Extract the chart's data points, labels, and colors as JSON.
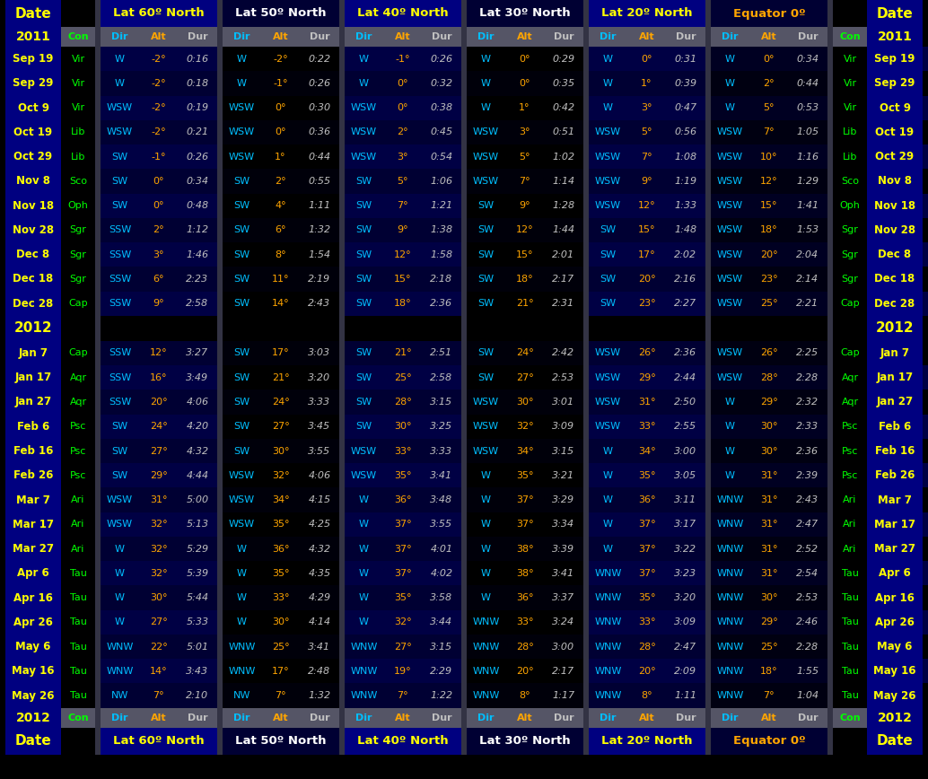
{
  "colors": {
    "date_text": "#FFFF00",
    "year_text": "#FFFF00",
    "con_text": "#00FF00",
    "dir_text": "#00BFFF",
    "alt_text": "#FFA500",
    "dur_text": "#C0C0C0",
    "subheader_dir": "#00BFFF",
    "subheader_alt": "#FFA500",
    "subheader_dur": "#C0C0C0",
    "lat60_header": "#FFFF00",
    "lat50_header": "#FFFFFF",
    "lat40_header": "#FFFF00",
    "lat30_header": "#FFFFFF",
    "lat20_header": "#FFFF00",
    "equator_header": "#FFA500"
  },
  "bg": {
    "date_col": "#000080",
    "con_col": "#000000",
    "lat60_header": "#000080",
    "lat50_header": "#000033",
    "lat40_header": "#000080",
    "lat30_header": "#000033",
    "lat20_header": "#000080",
    "eq_header": "#000033",
    "subheader": "#555566",
    "year_sep": "#000000",
    "row_dark_blue": "#000044",
    "row_black": "#000000",
    "separator_col": "#333344",
    "grid_line": "#333366"
  },
  "rows": [
    {
      "date": "Sep 19",
      "con": "Vir",
      "lat60": [
        "W",
        "-2°",
        "0:16"
      ],
      "lat50": [
        "W",
        "-2°",
        "0:22"
      ],
      "lat40": [
        "W",
        "-1°",
        "0:26"
      ],
      "lat30": [
        "W",
        "0°",
        "0:29"
      ],
      "lat20": [
        "W",
        "0°",
        "0:31"
      ],
      "eq": [
        "W",
        "0°",
        "0:34"
      ]
    },
    {
      "date": "Sep 29",
      "con": "Vir",
      "lat60": [
        "W",
        "-2°",
        "0:18"
      ],
      "lat50": [
        "W",
        "-1°",
        "0:26"
      ],
      "lat40": [
        "W",
        "0°",
        "0:32"
      ],
      "lat30": [
        "W",
        "0°",
        "0:35"
      ],
      "lat20": [
        "W",
        "1°",
        "0:39"
      ],
      "eq": [
        "W",
        "2°",
        "0:44"
      ]
    },
    {
      "date": "Oct 9",
      "con": "Vir",
      "lat60": [
        "WSW",
        "-2°",
        "0:19"
      ],
      "lat50": [
        "WSW",
        "0°",
        "0:30"
      ],
      "lat40": [
        "WSW",
        "0°",
        "0:38"
      ],
      "lat30": [
        "W",
        "1°",
        "0:42"
      ],
      "lat20": [
        "W",
        "3°",
        "0:47"
      ],
      "eq": [
        "W",
        "5°",
        "0:53"
      ]
    },
    {
      "date": "Oct 19",
      "con": "Lib",
      "lat60": [
        "WSW",
        "-2°",
        "0:21"
      ],
      "lat50": [
        "WSW",
        "0°",
        "0:36"
      ],
      "lat40": [
        "WSW",
        "2°",
        "0:45"
      ],
      "lat30": [
        "WSW",
        "3°",
        "0:51"
      ],
      "lat20": [
        "WSW",
        "5°",
        "0:56"
      ],
      "eq": [
        "WSW",
        "7°",
        "1:05"
      ]
    },
    {
      "date": "Oct 29",
      "con": "Lib",
      "lat60": [
        "SW",
        "-1°",
        "0:26"
      ],
      "lat50": [
        "WSW",
        "1°",
        "0:44"
      ],
      "lat40": [
        "WSW",
        "3°",
        "0:54"
      ],
      "lat30": [
        "WSW",
        "5°",
        "1:02"
      ],
      "lat20": [
        "WSW",
        "7°",
        "1:08"
      ],
      "eq": [
        "WSW",
        "10°",
        "1:16"
      ]
    },
    {
      "date": "Nov 8",
      "con": "Sco",
      "lat60": [
        "SW",
        "0°",
        "0:34"
      ],
      "lat50": [
        "SW",
        "2°",
        "0:55"
      ],
      "lat40": [
        "SW",
        "5°",
        "1:06"
      ],
      "lat30": [
        "WSW",
        "7°",
        "1:14"
      ],
      "lat20": [
        "WSW",
        "9°",
        "1:19"
      ],
      "eq": [
        "WSW",
        "12°",
        "1:29"
      ]
    },
    {
      "date": "Nov 18",
      "con": "Oph",
      "lat60": [
        "SW",
        "0°",
        "0:48"
      ],
      "lat50": [
        "SW",
        "4°",
        "1:11"
      ],
      "lat40": [
        "SW",
        "7°",
        "1:21"
      ],
      "lat30": [
        "SW",
        "9°",
        "1:28"
      ],
      "lat20": [
        "WSW",
        "12°",
        "1:33"
      ],
      "eq": [
        "WSW",
        "15°",
        "1:41"
      ]
    },
    {
      "date": "Nov 28",
      "con": "Sgr",
      "lat60": [
        "SSW",
        "2°",
        "1:12"
      ],
      "lat50": [
        "SW",
        "6°",
        "1:32"
      ],
      "lat40": [
        "SW",
        "9°",
        "1:38"
      ],
      "lat30": [
        "SW",
        "12°",
        "1:44"
      ],
      "lat20": [
        "SW",
        "15°",
        "1:48"
      ],
      "eq": [
        "WSW",
        "18°",
        "1:53"
      ]
    },
    {
      "date": "Dec 8",
      "con": "Sgr",
      "lat60": [
        "SSW",
        "3°",
        "1:46"
      ],
      "lat50": [
        "SW",
        "8°",
        "1:54"
      ],
      "lat40": [
        "SW",
        "12°",
        "1:58"
      ],
      "lat30": [
        "SW",
        "15°",
        "2:01"
      ],
      "lat20": [
        "SW",
        "17°",
        "2:02"
      ],
      "eq": [
        "WSW",
        "20°",
        "2:04"
      ]
    },
    {
      "date": "Dec 18",
      "con": "Sgr",
      "lat60": [
        "SSW",
        "6°",
        "2:23"
      ],
      "lat50": [
        "SW",
        "11°",
        "2:19"
      ],
      "lat40": [
        "SW",
        "15°",
        "2:18"
      ],
      "lat30": [
        "SW",
        "18°",
        "2:17"
      ],
      "lat20": [
        "SW",
        "20°",
        "2:16"
      ],
      "eq": [
        "WSW",
        "23°",
        "2:14"
      ]
    },
    {
      "date": "Dec 28",
      "con": "Cap",
      "lat60": [
        "SSW",
        "9°",
        "2:58"
      ],
      "lat50": [
        "SW",
        "14°",
        "2:43"
      ],
      "lat40": [
        "SW",
        "18°",
        "2:36"
      ],
      "lat30": [
        "SW",
        "21°",
        "2:31"
      ],
      "lat20": [
        "SW",
        "23°",
        "2:27"
      ],
      "eq": [
        "WSW",
        "25°",
        "2:21"
      ]
    },
    {
      "date": "2012",
      "con": "",
      "lat60": [],
      "lat50": [],
      "lat40": [],
      "lat30": [],
      "lat20": [],
      "eq": [],
      "is_year": true
    },
    {
      "date": "Jan 7",
      "con": "Cap",
      "lat60": [
        "SSW",
        "12°",
        "3:27"
      ],
      "lat50": [
        "SW",
        "17°",
        "3:03"
      ],
      "lat40": [
        "SW",
        "21°",
        "2:51"
      ],
      "lat30": [
        "SW",
        "24°",
        "2:42"
      ],
      "lat20": [
        "WSW",
        "26°",
        "2:36"
      ],
      "eq": [
        "WSW",
        "26°",
        "2:25"
      ]
    },
    {
      "date": "Jan 17",
      "con": "Aqr",
      "lat60": [
        "SSW",
        "16°",
        "3:49"
      ],
      "lat50": [
        "SW",
        "21°",
        "3:20"
      ],
      "lat40": [
        "SW",
        "25°",
        "2:58"
      ],
      "lat30": [
        "SW",
        "27°",
        "2:53"
      ],
      "lat20": [
        "WSW",
        "29°",
        "2:44"
      ],
      "eq": [
        "WSW",
        "28°",
        "2:28"
      ]
    },
    {
      "date": "Jan 27",
      "con": "Aqr",
      "lat60": [
        "SSW",
        "20°",
        "4:06"
      ],
      "lat50": [
        "SW",
        "24°",
        "3:33"
      ],
      "lat40": [
        "SW",
        "28°",
        "3:15"
      ],
      "lat30": [
        "WSW",
        "30°",
        "3:01"
      ],
      "lat20": [
        "WSW",
        "31°",
        "2:50"
      ],
      "eq": [
        "W",
        "29°",
        "2:32"
      ]
    },
    {
      "date": "Feb 6",
      "con": "Psc",
      "lat60": [
        "SW",
        "24°",
        "4:20"
      ],
      "lat50": [
        "SW",
        "27°",
        "3:45"
      ],
      "lat40": [
        "SW",
        "30°",
        "3:25"
      ],
      "lat30": [
        "WSW",
        "32°",
        "3:09"
      ],
      "lat20": [
        "WSW",
        "33°",
        "2:55"
      ],
      "eq": [
        "W",
        "30°",
        "2:33"
      ]
    },
    {
      "date": "Feb 16",
      "con": "Psc",
      "lat60": [
        "SW",
        "27°",
        "4:32"
      ],
      "lat50": [
        "SW",
        "30°",
        "3:55"
      ],
      "lat40": [
        "WSW",
        "33°",
        "3:33"
      ],
      "lat30": [
        "WSW",
        "34°",
        "3:15"
      ],
      "lat20": [
        "W",
        "34°",
        "3:00"
      ],
      "eq": [
        "W",
        "30°",
        "2:36"
      ]
    },
    {
      "date": "Feb 26",
      "con": "Psc",
      "lat60": [
        "SW",
        "29°",
        "4:44"
      ],
      "lat50": [
        "WSW",
        "32°",
        "4:06"
      ],
      "lat40": [
        "WSW",
        "35°",
        "3:41"
      ],
      "lat30": [
        "W",
        "35°",
        "3:21"
      ],
      "lat20": [
        "W",
        "35°",
        "3:05"
      ],
      "eq": [
        "W",
        "31°",
        "2:39"
      ]
    },
    {
      "date": "Mar 7",
      "con": "Ari",
      "lat60": [
        "WSW",
        "31°",
        "5:00"
      ],
      "lat50": [
        "WSW",
        "34°",
        "4:15"
      ],
      "lat40": [
        "W",
        "36°",
        "3:48"
      ],
      "lat30": [
        "W",
        "37°",
        "3:29"
      ],
      "lat20": [
        "W",
        "36°",
        "3:11"
      ],
      "eq": [
        "WNW",
        "31°",
        "2:43"
      ]
    },
    {
      "date": "Mar 17",
      "con": "Ari",
      "lat60": [
        "WSW",
        "32°",
        "5:13"
      ],
      "lat50": [
        "WSW",
        "35°",
        "4:25"
      ],
      "lat40": [
        "W",
        "37°",
        "3:55"
      ],
      "lat30": [
        "W",
        "37°",
        "3:34"
      ],
      "lat20": [
        "W",
        "37°",
        "3:17"
      ],
      "eq": [
        "WNW",
        "31°",
        "2:47"
      ]
    },
    {
      "date": "Mar 27",
      "con": "Ari",
      "lat60": [
        "W",
        "32°",
        "5:29"
      ],
      "lat50": [
        "W",
        "36°",
        "4:32"
      ],
      "lat40": [
        "W",
        "37°",
        "4:01"
      ],
      "lat30": [
        "W",
        "38°",
        "3:39"
      ],
      "lat20": [
        "W",
        "37°",
        "3:22"
      ],
      "eq": [
        "WNW",
        "31°",
        "2:52"
      ]
    },
    {
      "date": "Apr 6",
      "con": "Tau",
      "lat60": [
        "W",
        "32°",
        "5:39"
      ],
      "lat50": [
        "W",
        "35°",
        "4:35"
      ],
      "lat40": [
        "W",
        "37°",
        "4:02"
      ],
      "lat30": [
        "W",
        "38°",
        "3:41"
      ],
      "lat20": [
        "WNW",
        "37°",
        "3:23"
      ],
      "eq": [
        "WNW",
        "31°",
        "2:54"
      ]
    },
    {
      "date": "Apr 16",
      "con": "Tau",
      "lat60": [
        "W",
        "30°",
        "5:44"
      ],
      "lat50": [
        "W",
        "33°",
        "4:29"
      ],
      "lat40": [
        "W",
        "35°",
        "3:58"
      ],
      "lat30": [
        "W",
        "36°",
        "3:37"
      ],
      "lat20": [
        "WNW",
        "35°",
        "3:20"
      ],
      "eq": [
        "WNW",
        "30°",
        "2:53"
      ]
    },
    {
      "date": "Apr 26",
      "con": "Tau",
      "lat60": [
        "W",
        "27°",
        "5:33"
      ],
      "lat50": [
        "W",
        "30°",
        "4:14"
      ],
      "lat40": [
        "W",
        "32°",
        "3:44"
      ],
      "lat30": [
        "WNW",
        "33°",
        "3:24"
      ],
      "lat20": [
        "WNW",
        "33°",
        "3:09"
      ],
      "eq": [
        "WNW",
        "29°",
        "2:46"
      ]
    },
    {
      "date": "May 6",
      "con": "Tau",
      "lat60": [
        "WNW",
        "22°",
        "5:01"
      ],
      "lat50": [
        "WNW",
        "25°",
        "3:41"
      ],
      "lat40": [
        "WNW",
        "27°",
        "3:15"
      ],
      "lat30": [
        "WNW",
        "28°",
        "3:00"
      ],
      "lat20": [
        "WNW",
        "28°",
        "2:47"
      ],
      "eq": [
        "WNW",
        "25°",
        "2:28"
      ]
    },
    {
      "date": "May 16",
      "con": "Tau",
      "lat60": [
        "WNW",
        "14°",
        "3:43"
      ],
      "lat50": [
        "WNW",
        "17°",
        "2:48"
      ],
      "lat40": [
        "WNW",
        "19°",
        "2:29"
      ],
      "lat30": [
        "WNW",
        "20°",
        "2:17"
      ],
      "lat20": [
        "WNW",
        "20°",
        "2:09"
      ],
      "eq": [
        "WNW",
        "18°",
        "1:55"
      ]
    },
    {
      "date": "May 26",
      "con": "Tau",
      "lat60": [
        "NW",
        "7°",
        "2:10"
      ],
      "lat50": [
        "NW",
        "7°",
        "1:32"
      ],
      "lat40": [
        "WNW",
        "7°",
        "1:22"
      ],
      "lat30": [
        "WNW",
        "8°",
        "1:17"
      ],
      "lat20": [
        "WNW",
        "8°",
        "1:11"
      ],
      "eq": [
        "WNW",
        "7°",
        "1:04"
      ]
    }
  ]
}
